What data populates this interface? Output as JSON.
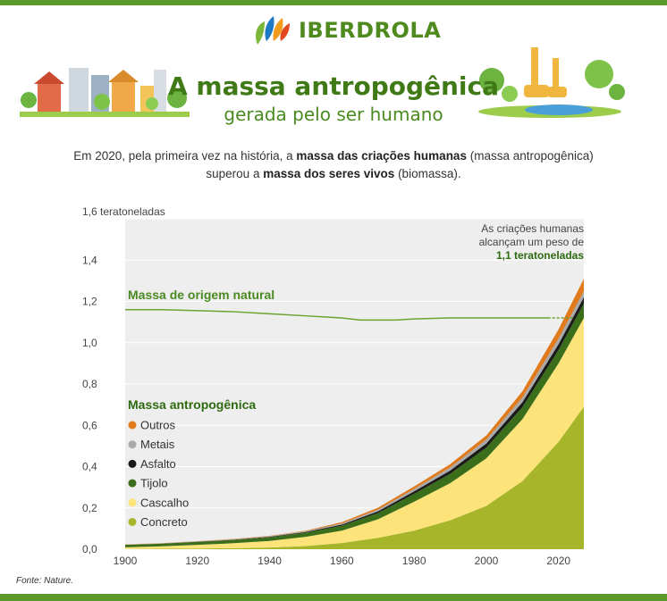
{
  "header": {
    "brand": "IBERDROLA",
    "title": "A massa antropogênica",
    "subtitle": "gerada pelo ser humano",
    "intro": {
      "part1": "Em 2020, pela primeira vez na história, a ",
      "bold1": "massa das criações humanas",
      "part2": " (massa antropogênica) superou a ",
      "bold2": "massa dos seres vivos",
      "part3": " (biomassa)."
    },
    "colors": {
      "brand_green": "#4f8a1f",
      "bar_green": "#5b9a2a"
    }
  },
  "illustrations": {
    "left": "city-illustration",
    "right": "zoo-illustration"
  },
  "chart_data": {
    "type": "area",
    "stacked": true,
    "ylabel": "teratoneladas",
    "y_top_tick_label": "1,6 teratoneladas",
    "ylim": [
      0,
      1.6
    ],
    "xlim": [
      1900,
      2027
    ],
    "y_ticks": [
      "0,0",
      "0,2",
      "0,4",
      "0,6",
      "0,8",
      "1,0",
      "1,2",
      "1,4"
    ],
    "y_tick_values": [
      0,
      0.2,
      0.4,
      0.6,
      0.8,
      1.0,
      1.2,
      1.4
    ],
    "x_ticks": [
      1900,
      1920,
      1940,
      1960,
      1980,
      2000,
      2020
    ],
    "x": [
      1900,
      1910,
      1920,
      1930,
      1940,
      1950,
      1960,
      1970,
      1980,
      1990,
      2000,
      2010,
      2020,
      2027
    ],
    "series": [
      {
        "name": "Concreto",
        "color": "#a6b52a",
        "values": [
          0.001,
          0.002,
          0.003,
          0.005,
          0.008,
          0.015,
          0.03,
          0.055,
          0.09,
          0.14,
          0.21,
          0.33,
          0.52,
          0.69
        ]
      },
      {
        "name": "Cascalho",
        "color": "#fde47a",
        "values": [
          0.008,
          0.012,
          0.018,
          0.024,
          0.032,
          0.045,
          0.06,
          0.09,
          0.14,
          0.18,
          0.23,
          0.3,
          0.38,
          0.43
        ]
      },
      {
        "name": "Tijolo",
        "color": "#3a6e1a",
        "values": [
          0.012,
          0.013,
          0.014,
          0.016,
          0.018,
          0.02,
          0.024,
          0.03,
          0.038,
          0.045,
          0.052,
          0.058,
          0.065,
          0.07
        ]
      },
      {
        "name": "Asfalto",
        "color": "#1a1a1a",
        "values": [
          0,
          0,
          0.001,
          0.001,
          0.002,
          0.003,
          0.005,
          0.008,
          0.012,
          0.016,
          0.02,
          0.024,
          0.028,
          0.03
        ]
      },
      {
        "name": "Metais",
        "color": "#a9a9a9",
        "values": [
          0.001,
          0.001,
          0.002,
          0.002,
          0.003,
          0.004,
          0.006,
          0.009,
          0.012,
          0.015,
          0.019,
          0.023,
          0.027,
          0.03
        ]
      },
      {
        "name": "Outros",
        "color": "#e07a1a",
        "values": [
          0.001,
          0.001,
          0.001,
          0.002,
          0.002,
          0.003,
          0.006,
          0.009,
          0.012,
          0.016,
          0.02,
          0.03,
          0.045,
          0.06
        ]
      }
    ],
    "natural_mass": {
      "label": "Massa de origem natural",
      "color": "#6ba32e",
      "x": [
        1900,
        1910,
        1920,
        1930,
        1940,
        1950,
        1960,
        1965,
        1970,
        1975,
        1980,
        1990,
        2000,
        2010,
        2017
      ],
      "values": [
        1.16,
        1.16,
        1.155,
        1.15,
        1.14,
        1.13,
        1.12,
        1.11,
        1.11,
        1.11,
        1.115,
        1.12,
        1.12,
        1.12,
        1.12
      ],
      "projected_x": [
        2017,
        2020,
        2024
      ],
      "projected_values": [
        1.12,
        1.12,
        1.12
      ]
    },
    "legend": {
      "title": "Massa antropogênica",
      "position": "left",
      "order": [
        "Outros",
        "Metais",
        "Asfalto",
        "Tijolo",
        "Cascalho",
        "Concreto"
      ]
    },
    "annotation": {
      "line1": "As criações humanas",
      "line2": "alcançam um peso de",
      "line3": "1,1 teratoneladas",
      "color_bold": "#2d6a10"
    },
    "grid": {
      "horizontal": true,
      "color": "#ffffff"
    },
    "background": "#eeeeee"
  },
  "source": "Fonte: Nature."
}
